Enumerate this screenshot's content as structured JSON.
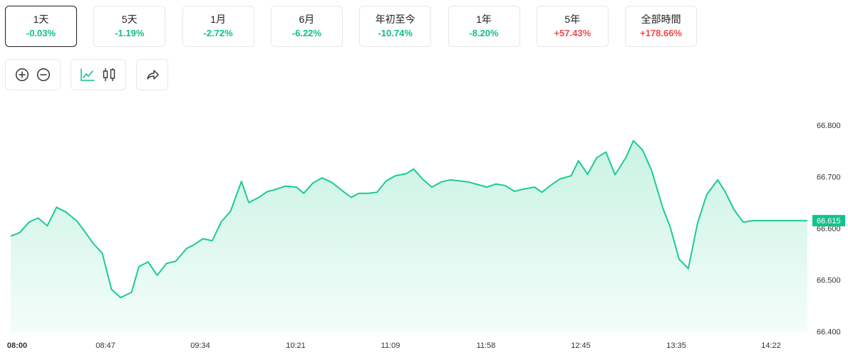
{
  "tabs": [
    {
      "label": "1天",
      "change": "-0.03%",
      "direction": "down",
      "active": true
    },
    {
      "label": "5天",
      "change": "-1.19%",
      "direction": "down",
      "active": false
    },
    {
      "label": "1月",
      "change": "-2.72%",
      "direction": "down",
      "active": false
    },
    {
      "label": "6月",
      "change": "-6.22%",
      "direction": "down",
      "active": false
    },
    {
      "label": "年初至今",
      "change": "-10.74%",
      "direction": "down",
      "active": false
    },
    {
      "label": "1年",
      "change": "-8.20%",
      "direction": "down",
      "active": false
    },
    {
      "label": "5年",
      "change": "+57.43%",
      "direction": "up",
      "active": false
    },
    {
      "label": "全部時間",
      "change": "+178.66%",
      "direction": "up",
      "active": false
    }
  ],
  "toolbar": {
    "zoom_in_icon": "plus-circle-icon",
    "zoom_out_icon": "minus-circle-icon",
    "line_chart_icon": "line-chart-icon",
    "candlestick_icon": "candlestick-icon",
    "share_icon": "share-icon"
  },
  "colors": {
    "line": "#1ccb93",
    "area_top": "#c9f3e3",
    "area_bottom": "#f3fdf9",
    "down": "#0fbf84",
    "up": "#ef4b4b",
    "price_tag": "#12c28c"
  },
  "chart_data": {
    "type": "area",
    "title": "",
    "xlabel": "",
    "ylabel": "",
    "ylim": [
      66.4,
      66.8
    ],
    "y_ticks": [
      "66.400",
      "66.500",
      "66.600",
      "66.700",
      "66.800"
    ],
    "x_ticks": [
      "08:00",
      "08:47",
      "09:34",
      "10:21",
      "11:09",
      "11:58",
      "12:45",
      "13:35",
      "14:22"
    ],
    "x_range_minutes": [
      0,
      435
    ],
    "current_price": "66.615",
    "series": [
      {
        "x": [
          0,
          5,
          10,
          15,
          20,
          25,
          30,
          36,
          40,
          45,
          50,
          55,
          60,
          66,
          70,
          75,
          80,
          85,
          90,
          96,
          100,
          105,
          110,
          115,
          120,
          126,
          130,
          135,
          140,
          145,
          150,
          156,
          160,
          165,
          170,
          175,
          180,
          186,
          190,
          195,
          200,
          205,
          210,
          216,
          220,
          225,
          230,
          235,
          240,
          245,
          250,
          256,
          260,
          265,
          270,
          275,
          280,
          286,
          290,
          295,
          300,
          306,
          310,
          315,
          320,
          325,
          330,
          336,
          340,
          345,
          350,
          356,
          360,
          365,
          370,
          375,
          380,
          386,
          390,
          395,
          400,
          405,
          410,
          415,
          420,
          425,
          430,
          435
        ],
        "y": [
          66.585,
          66.592,
          66.612,
          66.62,
          66.605,
          66.641,
          66.632,
          66.615,
          66.596,
          66.571,
          66.552,
          66.482,
          66.466,
          66.476,
          66.526,
          66.535,
          66.509,
          66.532,
          66.536,
          66.561,
          66.568,
          66.58,
          66.576,
          66.613,
          66.633,
          66.691,
          66.65,
          66.659,
          66.671,
          66.676,
          66.682,
          66.68,
          66.668,
          66.688,
          66.698,
          66.69,
          66.676,
          66.66,
          66.668,
          66.668,
          66.67,
          66.692,
          66.702,
          66.706,
          66.715,
          66.695,
          66.68,
          66.69,
          66.694,
          66.692,
          66.69,
          66.684,
          66.68,
          66.686,
          66.683,
          66.672,
          66.676,
          66.68,
          66.67,
          66.684,
          66.696,
          66.702,
          66.731,
          66.705,
          66.737,
          66.748,
          66.704,
          66.738,
          66.77,
          66.752,
          66.712,
          66.64,
          66.604,
          66.54,
          66.522,
          66.61,
          66.665,
          66.694,
          66.672,
          66.636,
          66.612,
          66.615,
          66.615,
          66.615,
          66.615,
          66.615,
          66.615,
          66.615
        ]
      }
    ]
  }
}
